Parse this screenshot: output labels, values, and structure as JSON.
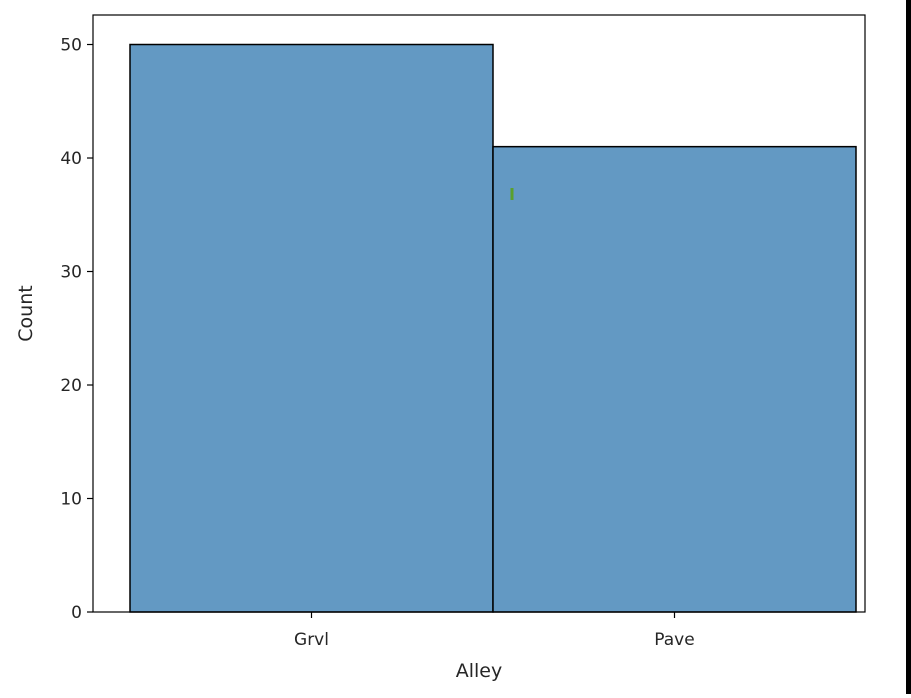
{
  "chart_data": {
    "type": "bar",
    "title": "",
    "xlabel": "Alley",
    "ylabel": "Count",
    "categories": [
      "Grvl",
      "Pave"
    ],
    "values": [
      50,
      41
    ],
    "ylim": [
      0,
      52.6
    ],
    "yticks": [
      0,
      10,
      20,
      30,
      40,
      50
    ],
    "grid": false,
    "legend": "none",
    "bar_color": "#6399c3",
    "bar_edge_color": "#000000",
    "annotation_color": "#5aa02c"
  }
}
